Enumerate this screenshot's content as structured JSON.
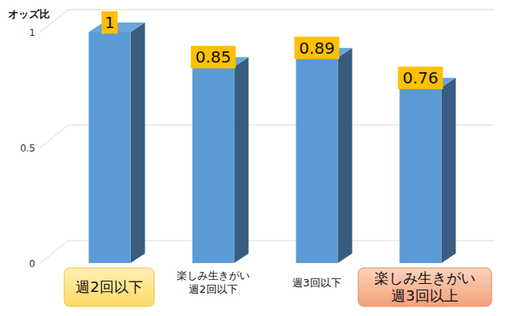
{
  "chart_data": {
    "type": "bar",
    "y_label": "オッズ比",
    "categories": [
      "週2回以下",
      "楽しみ生きがい\n週2回以下",
      "週3回以下",
      "楽しみ生きがい\n週3回以上"
    ],
    "values": [
      1,
      0.85,
      0.89,
      0.76
    ],
    "color": "#5b9bd5",
    "ylim": [
      0,
      1
    ],
    "yticks": [
      0,
      0.5,
      1
    ],
    "grid": true,
    "data_labels": true
  }
}
